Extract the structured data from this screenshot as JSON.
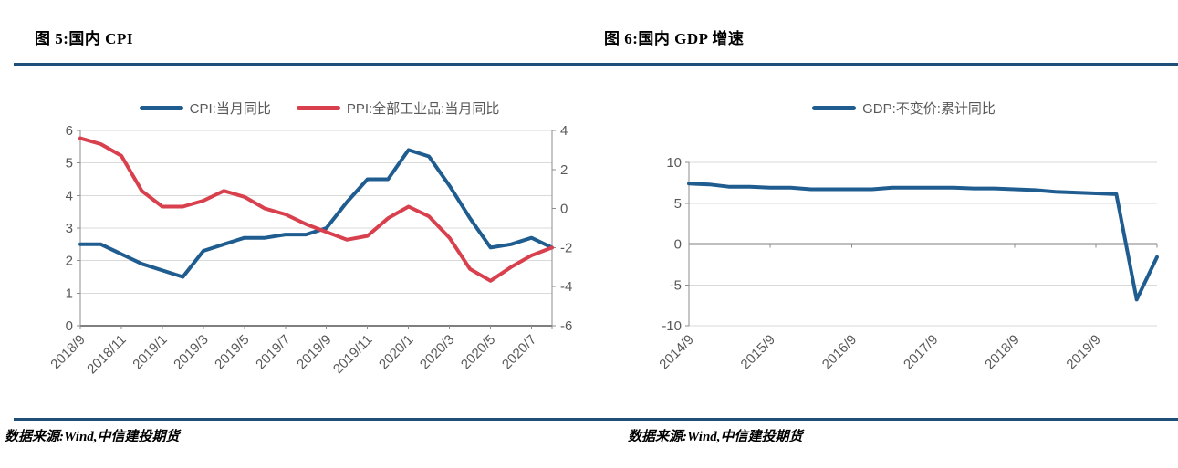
{
  "page": {
    "background": "#ffffff"
  },
  "colors": {
    "separator": "#1f4e79",
    "grid": "#d9d9d9",
    "axis": "#8c8c8c",
    "axis_dark": "#7f7f7f",
    "tick_text": "#595959",
    "cpi_blue": "#1f5c8f",
    "ppi_red": "#d8404d"
  },
  "figures": [
    {
      "title": "图 5:国内 CPI",
      "source": "数据来源:Wind,中信建投期货"
    },
    {
      "title": "图 6:国内 GDP 增速",
      "source": "数据来源:Wind,中信建投期货"
    }
  ],
  "chart_data": [
    {
      "type": "line",
      "title": "图 5:国内 CPI",
      "legend_position": "top",
      "grid": true,
      "categories": [
        "2018/9",
        "2018/10",
        "2018/11",
        "2018/12",
        "2019/1",
        "2019/2",
        "2019/3",
        "2019/4",
        "2019/5",
        "2019/6",
        "2019/7",
        "2019/8",
        "2019/9",
        "2019/10",
        "2019/11",
        "2019/12",
        "2020/1",
        "2020/2",
        "2020/3",
        "2020/4",
        "2020/5",
        "2020/6",
        "2020/7",
        "2020/8"
      ],
      "x_tick_labels": [
        "2018/9",
        "2018/11",
        "2019/1",
        "2019/3",
        "2019/5",
        "2019/7",
        "2019/9",
        "2019/11",
        "2020/1",
        "2020/3",
        "2020/5",
        "2020/7"
      ],
      "x_label_every": 2,
      "left_axis": {
        "min": 0,
        "max": 6,
        "step": 1
      },
      "right_axis": {
        "min": -6,
        "max": 4,
        "step": 2
      },
      "series": [
        {
          "name": "CPI:当月同比",
          "axis": "left",
          "color": "#1f5c8f",
          "values": [
            2.5,
            2.5,
            2.2,
            1.9,
            1.7,
            1.5,
            2.3,
            2.5,
            2.7,
            2.7,
            2.8,
            2.8,
            3.0,
            3.8,
            4.5,
            4.5,
            5.4,
            5.2,
            4.3,
            3.3,
            2.4,
            2.5,
            2.7,
            2.4
          ]
        },
        {
          "name": "PPI:全部工业品:当月同比",
          "axis": "right",
          "color": "#d8404d",
          "values": [
            3.6,
            3.3,
            2.7,
            0.9,
            0.1,
            0.1,
            0.4,
            0.9,
            0.6,
            0.0,
            -0.3,
            -0.8,
            -1.2,
            -1.6,
            -1.4,
            -0.5,
            0.1,
            -0.4,
            -1.5,
            -3.1,
            -3.7,
            -3.0,
            -2.4,
            -2.0
          ]
        }
      ]
    },
    {
      "type": "line",
      "title": "图 6:国内 GDP 增速",
      "legend_position": "top",
      "grid": true,
      "categories": [
        "2014/9",
        "2014/12",
        "2015/3",
        "2015/6",
        "2015/9",
        "2015/12",
        "2016/3",
        "2016/6",
        "2016/9",
        "2016/12",
        "2017/3",
        "2017/6",
        "2017/9",
        "2017/12",
        "2018/3",
        "2018/6",
        "2018/9",
        "2018/12",
        "2019/3",
        "2019/6",
        "2019/9",
        "2019/12",
        "2020/3",
        "2020/6"
      ],
      "x_tick_labels": [
        "2014/9",
        "2015/9",
        "2016/9",
        "2017/9",
        "2018/9",
        "2019/9"
      ],
      "x_label_every": 4,
      "left_axis": {
        "min": -10,
        "max": 10,
        "step": 5
      },
      "series": [
        {
          "name": "GDP:不变价:累计同比",
          "axis": "left",
          "color": "#1f5c8f",
          "values": [
            7.4,
            7.3,
            7.0,
            7.0,
            6.9,
            6.9,
            6.7,
            6.7,
            6.7,
            6.7,
            6.9,
            6.9,
            6.9,
            6.9,
            6.8,
            6.8,
            6.7,
            6.6,
            6.4,
            6.3,
            6.2,
            6.1,
            -6.8,
            -1.6
          ]
        }
      ]
    }
  ]
}
